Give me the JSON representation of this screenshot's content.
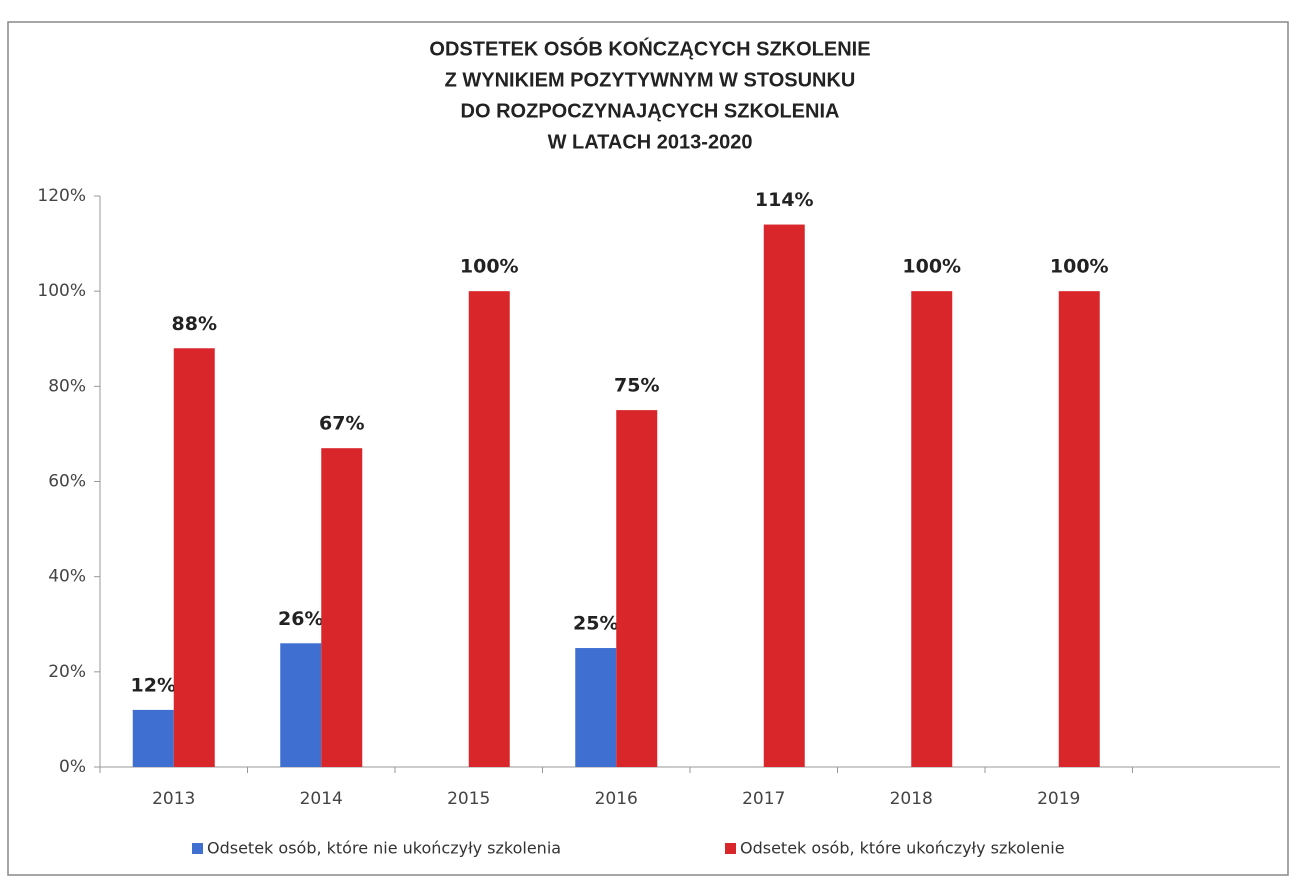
{
  "chart_data": {
    "type": "bar",
    "title": [
      "ODSTETEK OSÓB KOŃCZĄCYCH SZKOLENIE",
      "Z WYNIKIEM POZYTYWNYM W STOSUNKU",
      "DO ROZPOCZYNAJĄCYCH SZKOLENIA",
      "W LATACH 2013-2020"
    ],
    "categories": [
      "2013",
      "2014",
      "2015",
      "2016",
      "2017",
      "2018",
      "2019",
      null
    ],
    "series": [
      {
        "name": "Odsetek osób, które nie ukończyły szkolenia",
        "color": "#3f6fd1",
        "values": [
          12,
          26,
          null,
          25,
          null,
          null,
          null,
          null
        ],
        "value_labels": [
          "12%",
          "26%",
          null,
          "25%",
          null,
          null,
          null,
          null
        ]
      },
      {
        "name": "Odsetek osób, które ukończyły szkolenie",
        "color": "#d8262b",
        "values": [
          88,
          67,
          100,
          75,
          114,
          100,
          100,
          null
        ],
        "value_labels": [
          "88%",
          "67%",
          "100%",
          "75%",
          "114%",
          "100%",
          "100%",
          null
        ]
      }
    ],
    "ylim": [
      0,
      120
    ],
    "yticks": [
      {
        "value": 0,
        "label": "0%"
      },
      {
        "value": 20,
        "label": "20%"
      },
      {
        "value": 40,
        "label": "40%"
      },
      {
        "value": 60,
        "label": "60%"
      },
      {
        "value": 80,
        "label": "80%"
      },
      {
        "value": 100,
        "label": "100%"
      },
      {
        "value": 120,
        "label": "120%"
      }
    ],
    "legend": "bottom"
  }
}
